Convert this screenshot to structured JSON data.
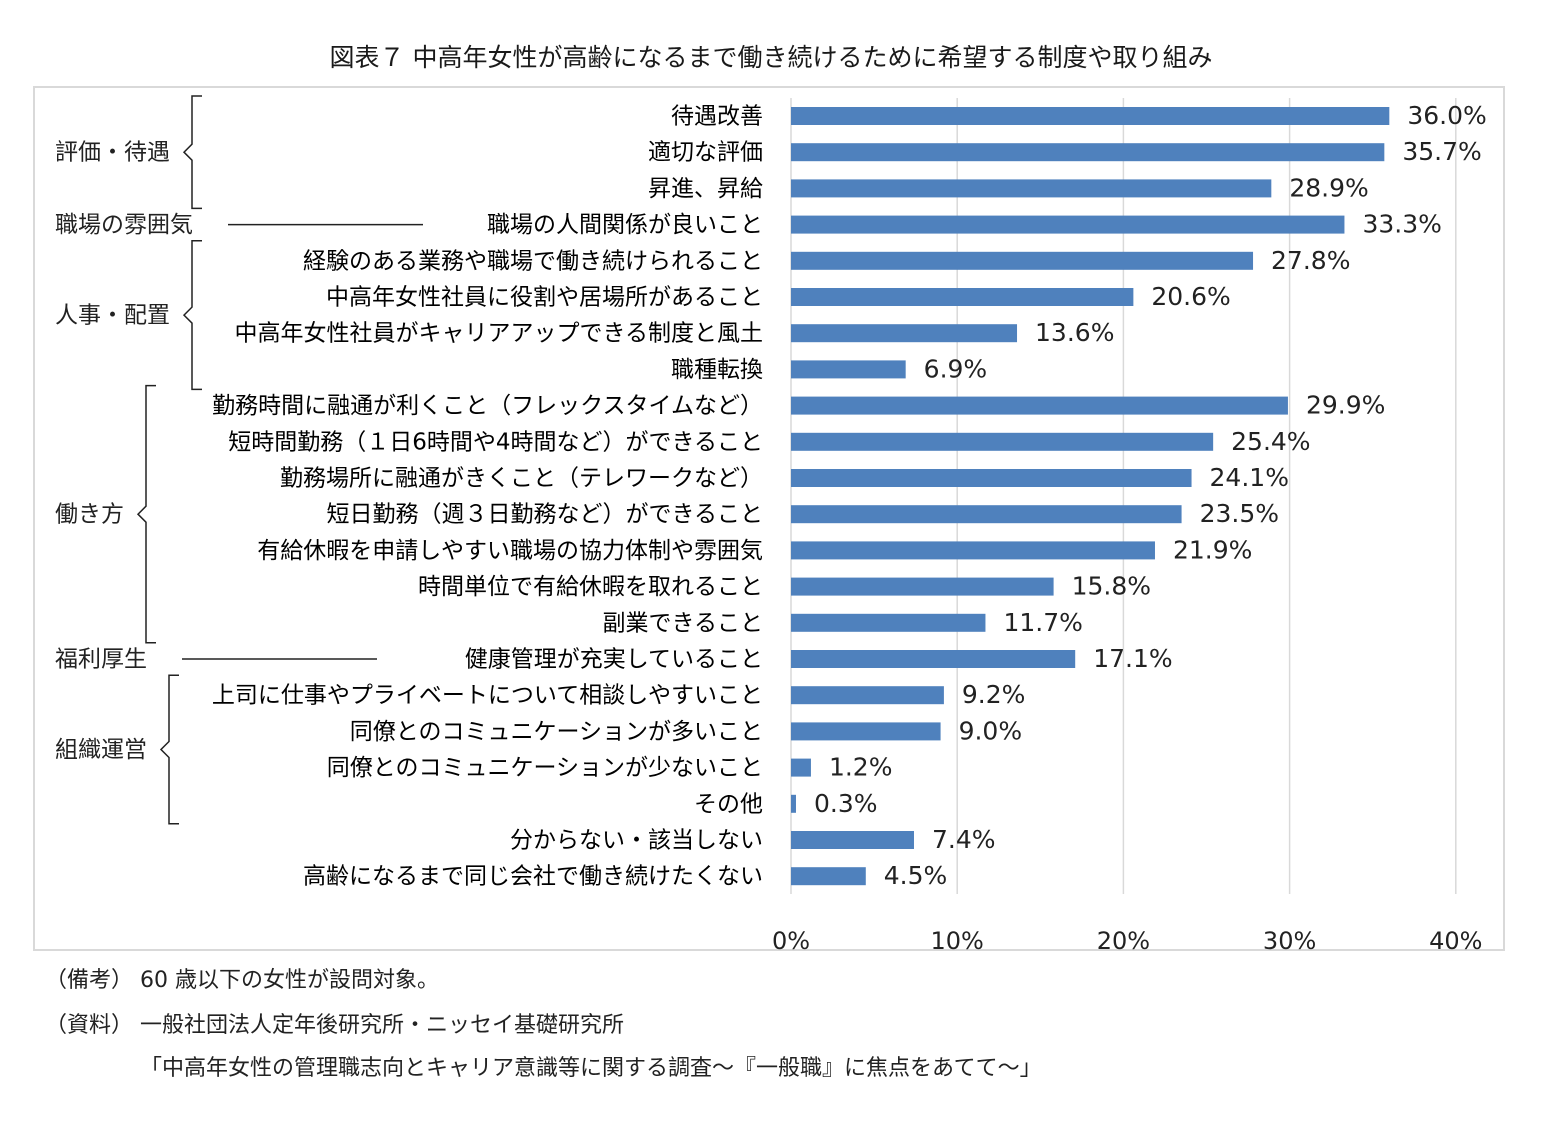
{
  "title": "図表７ 中高年女性が高齢になるまで働き続けるために希望する制度や取り組み",
  "chart_data": {
    "type": "bar",
    "orientation": "horizontal",
    "categories": [
      "待遇改善",
      "適切な評価",
      "昇進、昇給",
      "職場の人間関係が良いこと",
      "経験のある業務や職場で働き続けられること",
      "中高年女性社員に役割や居場所があること",
      "中高年女性社員がキャリアアップできる制度と風土",
      "職種転換",
      "勤務時間に融通が利くこと（フレックスタイムなど）",
      "短時間勤務（１日6時間や4時間など）ができること",
      "勤務場所に融通がきくこと（テレワークなど）",
      "短日勤務（週３日勤務など）ができること",
      "有給休暇を申請しやすい職場の協力体制や雰囲気",
      "時間単位で有給休暇を取れること",
      "副業できること",
      "健康管理が充実していること",
      "上司に仕事やプライベートについて相談しやすいこと",
      "同僚とのコミュニケーションが多いこと",
      "同僚とのコミュニケーションが少ないこと",
      "その他",
      "分からない・該当しない",
      "高齢になるまで同じ会社で働き続けたくない"
    ],
    "values": [
      36.0,
      35.7,
      28.9,
      33.3,
      27.8,
      20.6,
      13.6,
      6.9,
      29.9,
      25.4,
      24.1,
      23.5,
      21.9,
      15.8,
      11.7,
      17.1,
      9.2,
      9.0,
      1.2,
      0.3,
      7.4,
      4.5
    ],
    "value_labels": [
      "36.0%",
      "35.7%",
      "28.9%",
      "33.3%",
      "27.8%",
      "20.6%",
      "13.6%",
      "6.9%",
      "29.9%",
      "25.4%",
      "24.1%",
      "23.5%",
      "21.9%",
      "15.8%",
      "11.7%",
      "17.1%",
      "9.2%",
      "9.0%",
      "1.2%",
      "0.3%",
      "7.4%",
      "4.5%"
    ],
    "xlim": [
      0,
      40
    ],
    "xticks": [
      0,
      10,
      20,
      30,
      40
    ],
    "xtick_labels": [
      "0%",
      "10%",
      "20%",
      "30%",
      "40%"
    ],
    "grid": "vertical",
    "legend": "none",
    "bar_color": "#4f81bd",
    "gridline_color": "#d9d9d9",
    "groups": [
      {
        "label": "評価・待遇",
        "first": 0,
        "last": 2,
        "marker": "bracket"
      },
      {
        "label": "職場の雰囲気",
        "first": 3,
        "last": 3,
        "marker": "line"
      },
      {
        "label": "人事・配置",
        "first": 4,
        "last": 7,
        "marker": "bracket"
      },
      {
        "label": "働き方",
        "first": 8,
        "last": 14,
        "marker": "bracket"
      },
      {
        "label": "福利厚生",
        "first": 15,
        "last": 15,
        "marker": "line"
      },
      {
        "label": "組織運営",
        "first": 16,
        "last": 19,
        "marker": "bracket"
      }
    ]
  },
  "notes": {
    "remark_tag": "（備考）",
    "remark": "60 歳以下の女性が設問対象。",
    "source_tag": "（資料）",
    "source_1": "一般社団法人定年後研究所・ニッセイ基礎研究所",
    "source_2": "「中高年女性の管理職志向とキャリア意識等に関する調査～『一般職』に焦点をあてて～」"
  }
}
